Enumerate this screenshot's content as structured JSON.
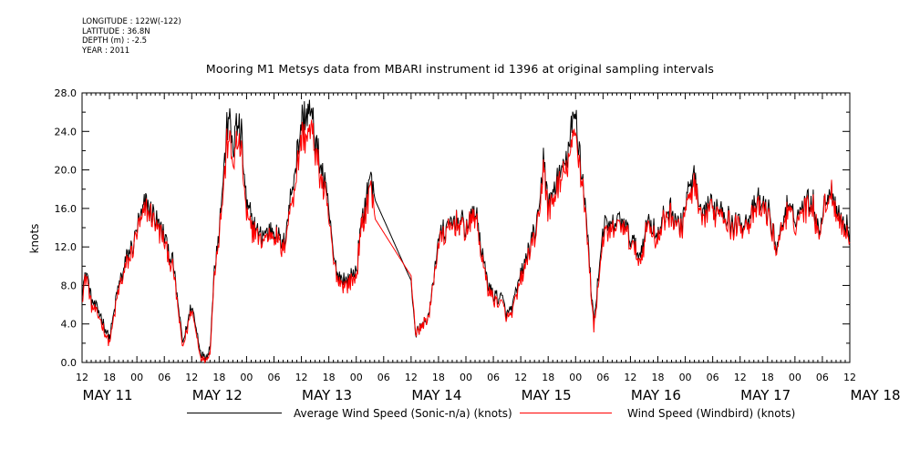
{
  "meta": {
    "longitude": "LONGITUDE : 122W(-122)",
    "latitude": "LATITUDE : 36.8N",
    "depth": "DEPTH (m) : -2.5",
    "year": "YEAR : 2011"
  },
  "chart_data": {
    "type": "line",
    "title": "Mooring M1 Metsys data from MBARI instrument id 1396 at original sampling intervals",
    "ylabel": "knots",
    "xlabel": "",
    "ylim": [
      0,
      28
    ],
    "y_ticks": [
      "0.0",
      "4.0",
      "8.0",
      "12.0",
      "16.0",
      "20.0",
      "24.0",
      "28.0"
    ],
    "x_unit": "hours since MAY 11 12:00",
    "xlim": [
      0,
      168
    ],
    "x_hour_labels": [
      "12",
      "18",
      "00",
      "06",
      "12",
      "18",
      "00",
      "06",
      "12",
      "18",
      "00",
      "06",
      "12",
      "18",
      "00",
      "06",
      "12",
      "18",
      "00",
      "06",
      "12",
      "18",
      "00",
      "06",
      "12",
      "18",
      "00",
      "06",
      "12"
    ],
    "x_day_labels": [
      {
        "label": "MAY 11",
        "x": 0
      },
      {
        "label": "MAY 12",
        "x": 24
      },
      {
        "label": "MAY 13",
        "x": 48
      },
      {
        "label": "MAY 14",
        "x": 72
      },
      {
        "label": "MAY 15",
        "x": 96
      },
      {
        "label": "MAY 16",
        "x": 120
      },
      {
        "label": "MAY 17",
        "x": 144
      },
      {
        "label": "MAY 18",
        "x": 168
      }
    ],
    "grid": false,
    "legend_position": "bottom",
    "series": [
      {
        "name": "Average Wind Speed (Sonic-n/a) (knots)",
        "color": "#000000",
        "x": [
          0,
          1,
          2,
          4,
          5,
          6,
          8,
          10,
          11,
          12,
          14,
          16,
          18,
          20,
          22,
          24,
          26,
          27,
          28,
          29,
          30,
          32,
          33,
          34,
          35,
          36,
          37,
          38,
          39,
          40,
          42,
          44,
          46,
          48,
          50,
          52,
          54,
          55,
          56,
          58,
          60,
          61,
          62,
          63,
          64,
          72,
          73,
          74,
          76,
          78,
          80,
          82,
          84,
          86,
          88,
          89,
          90,
          92,
          93,
          94,
          96,
          98,
          100,
          101,
          102,
          104,
          106,
          108,
          110,
          112,
          114,
          116,
          118,
          120,
          121,
          122,
          124,
          126,
          128,
          130,
          131,
          132,
          134,
          135,
          136,
          137,
          138,
          140,
          142,
          144,
          146,
          148,
          150,
          152,
          154,
          156,
          158,
          160,
          161,
          162,
          163,
          164,
          166,
          168
        ],
        "y": [
          7.5,
          9.5,
          6.5,
          5.0,
          3.5,
          2.5,
          8.0,
          11.0,
          12.0,
          14.0,
          16.5,
          15.0,
          13.0,
          10.0,
          2.0,
          6.0,
          1.0,
          0.5,
          1.5,
          10.0,
          14.0,
          26.0,
          22.0,
          25.0,
          23.0,
          16.0,
          15.0,
          14.0,
          13.0,
          13.5,
          14.0,
          12.0,
          18.0,
          25.0,
          26.0,
          21.0,
          16.0,
          11.0,
          9.0,
          8.5,
          9.5,
          14.0,
          16.5,
          19.5,
          17.0,
          8.5,
          3.0,
          3.5,
          5.0,
          13.0,
          14.0,
          15.0,
          14.0,
          16.0,
          10.0,
          8.0,
          7.0,
          6.5,
          5.0,
          5.5,
          9.0,
          12.0,
          15.0,
          22.0,
          16.0,
          19.0,
          21.0,
          26.0,
          17.0,
          4.0,
          14.0,
          14.0,
          15.0,
          13.0,
          12.0,
          11.0,
          15.0,
          13.0,
          16.0,
          15.0,
          14.0,
          16.5,
          19.5,
          16.0,
          14.5,
          16.5,
          16.0,
          16.5,
          14.5,
          14.5,
          15.0,
          16.5,
          16.0,
          12.0,
          16.0,
          15.0,
          16.5,
          17.0,
          13.5,
          15.5,
          17.5,
          18.0,
          15.0,
          13.5
        ]
      },
      {
        "name": "Wind Speed (Windbird) (knots)",
        "color": "#ff0000",
        "x": [
          0,
          1,
          2,
          4,
          5,
          6,
          8,
          10,
          11,
          12,
          14,
          16,
          18,
          20,
          22,
          24,
          26,
          27,
          28,
          29,
          30,
          32,
          33,
          34,
          35,
          36,
          37,
          38,
          39,
          40,
          42,
          44,
          46,
          48,
          50,
          52,
          54,
          55,
          56,
          58,
          60,
          61,
          62,
          63,
          64,
          72,
          73,
          74,
          76,
          78,
          80,
          82,
          84,
          86,
          88,
          89,
          90,
          92,
          93,
          94,
          96,
          98,
          100,
          101,
          102,
          104,
          106,
          108,
          110,
          112,
          114,
          116,
          118,
          120,
          121,
          122,
          124,
          126,
          128,
          130,
          131,
          132,
          134,
          135,
          136,
          137,
          138,
          140,
          142,
          144,
          146,
          148,
          150,
          152,
          154,
          156,
          158,
          160,
          161,
          162,
          163,
          164,
          166,
          168
        ],
        "y": [
          7.0,
          9.0,
          6.0,
          4.5,
          3.0,
          2.0,
          7.5,
          10.5,
          11.5,
          13.5,
          16.0,
          14.5,
          12.5,
          9.5,
          1.5,
          5.5,
          0.5,
          0.3,
          1.0,
          9.5,
          13.5,
          24.0,
          20.5,
          23.0,
          21.5,
          15.0,
          14.0,
          13.5,
          12.5,
          13.0,
          13.5,
          11.5,
          17.0,
          23.0,
          24.0,
          20.0,
          15.0,
          10.5,
          8.5,
          8.0,
          9.0,
          13.5,
          15.5,
          18.5,
          15.0,
          9.0,
          3.0,
          3.5,
          5.0,
          12.5,
          13.5,
          14.5,
          13.5,
          15.5,
          9.5,
          7.5,
          6.5,
          6.0,
          4.5,
          5.0,
          8.5,
          11.5,
          14.5,
          21.0,
          15.5,
          18.0,
          20.0,
          24.0,
          16.5,
          3.5,
          13.0,
          13.5,
          14.5,
          12.5,
          11.5,
          10.5,
          14.5,
          12.5,
          15.5,
          14.5,
          13.5,
          16.0,
          18.5,
          15.5,
          14.0,
          16.0,
          15.5,
          16.0,
          14.0,
          14.0,
          14.5,
          16.0,
          15.5,
          11.5,
          15.5,
          14.5,
          16.0,
          16.5,
          13.0,
          15.0,
          17.0,
          17.5,
          14.5,
          13.0
        ]
      }
    ]
  }
}
